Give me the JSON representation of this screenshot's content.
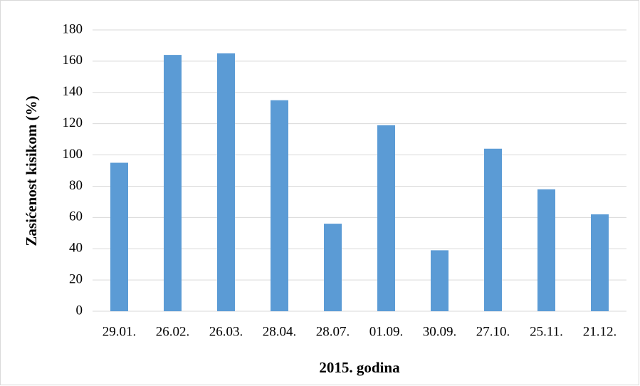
{
  "chart_data": {
    "type": "bar",
    "x_label": "2015. godina",
    "y_label": "Zasićenost kisikom (%)",
    "categories": [
      "29.01.",
      "26.02.",
      "26.03.",
      "28.04.",
      "28.07.",
      "01.09.",
      "30.09.",
      "27.10.",
      "25.11.",
      "21.12."
    ],
    "values": [
      95,
      164,
      165,
      135,
      56,
      119,
      39,
      104,
      78,
      62
    ],
    "color": "#5b9bd5",
    "ylim": [
      0,
      180
    ],
    "yticks": [
      0,
      20,
      40,
      60,
      80,
      100,
      120,
      140,
      160,
      180
    ],
    "grid": true
  }
}
